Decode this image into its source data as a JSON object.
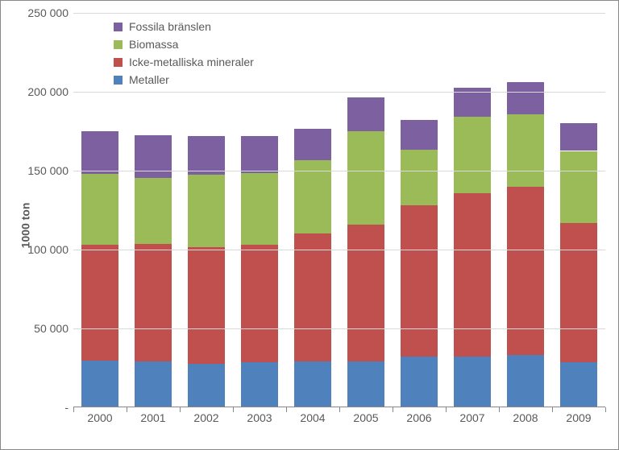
{
  "chart": {
    "type": "stacked-bar",
    "background_color": "#ffffff",
    "grid_color": "#d9d9d9",
    "axis_color": "#888888",
    "text_color": "#595959",
    "label_fontsize": 14,
    "y_axis_title": "1000 ton",
    "y_axis_title_fontsize": 14,
    "ylim": [
      0,
      250000
    ],
    "ytick_step": 50000,
    "y_ticks": [
      {
        "value": 0,
        "label": "-"
      },
      {
        "value": 50000,
        "label": "50 000"
      },
      {
        "value": 100000,
        "label": "100 000"
      },
      {
        "value": 150000,
        "label": "150 000"
      },
      {
        "value": 200000,
        "label": "200 000"
      },
      {
        "value": 250000,
        "label": "250 000"
      }
    ],
    "categories": [
      "2000",
      "2001",
      "2002",
      "2003",
      "2004",
      "2005",
      "2006",
      "2007",
      "2008",
      "2009"
    ],
    "legend": {
      "position": "top-left-inside",
      "items": [
        {
          "label": "Fossila bränslen",
          "color": "#7d60a0"
        },
        {
          "label": "Biomassa",
          "color": "#9bbb59"
        },
        {
          "label": "Icke-metalliska mineraler",
          "color": "#c0504d"
        },
        {
          "label": "Metaller",
          "color": "#4f81bd"
        }
      ]
    },
    "series": {
      "metaller": {
        "color": "#4f81bd",
        "values": [
          29000,
          28500,
          27000,
          28000,
          28500,
          28500,
          31500,
          31500,
          32500,
          28000
        ]
      },
      "icke_met": {
        "color": "#c0504d",
        "values": [
          73500,
          74500,
          74000,
          74500,
          81000,
          87000,
          96000,
          103500,
          107000,
          88500
        ]
      },
      "biomassa": {
        "color": "#9bbb59",
        "values": [
          45000,
          42000,
          46000,
          45500,
          46500,
          59000,
          35500,
          48500,
          45500,
          45500
        ]
      },
      "fossila": {
        "color": "#7d60a0",
        "values": [
          27000,
          27000,
          24500,
          23500,
          20000,
          21500,
          18500,
          18500,
          20500,
          17500
        ]
      }
    },
    "stack_order": [
      "metaller",
      "icke_met",
      "biomassa",
      "fossila"
    ],
    "bar_width_ratio": 0.7
  }
}
